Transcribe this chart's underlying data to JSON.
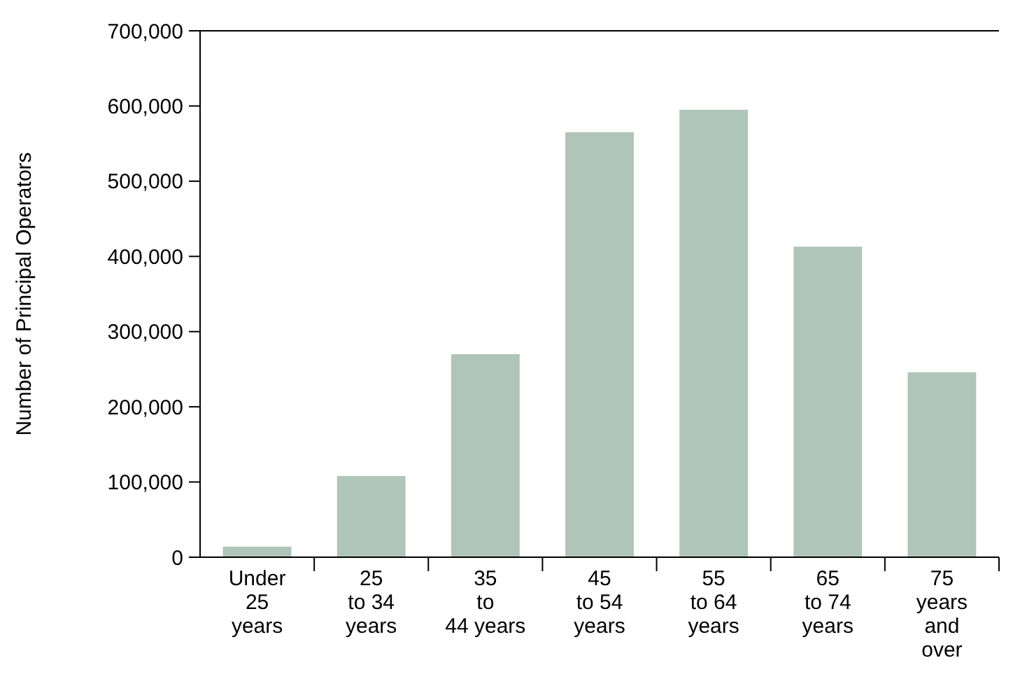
{
  "chart_data": {
    "type": "bar",
    "ylabel": "Number of Principal Operators",
    "categories": [
      "Under\n25\nyears",
      "25\nto 34\nyears",
      "35\nto\n44 years",
      "45\nto 54\nyears",
      "55\nto 64\nyears",
      "65\nto 74\nyears",
      "75\nyears\nand\nover"
    ],
    "values": [
      14000,
      108000,
      270000,
      565000,
      595000,
      413000,
      246000
    ],
    "color": "#b0c5b9",
    "ylim": [
      0,
      700000
    ],
    "yticks": [
      {
        "value": 0,
        "label": "0"
      },
      {
        "value": 100000,
        "label": "100,000"
      },
      {
        "value": 200000,
        "label": "200,000"
      },
      {
        "value": 300000,
        "label": "300,000"
      },
      {
        "value": 400000,
        "label": "400,000"
      },
      {
        "value": 500000,
        "label": "500,000"
      },
      {
        "value": 600000,
        "label": "600,000"
      },
      {
        "value": 700000,
        "label": "700,000"
      }
    ],
    "grid": false
  }
}
